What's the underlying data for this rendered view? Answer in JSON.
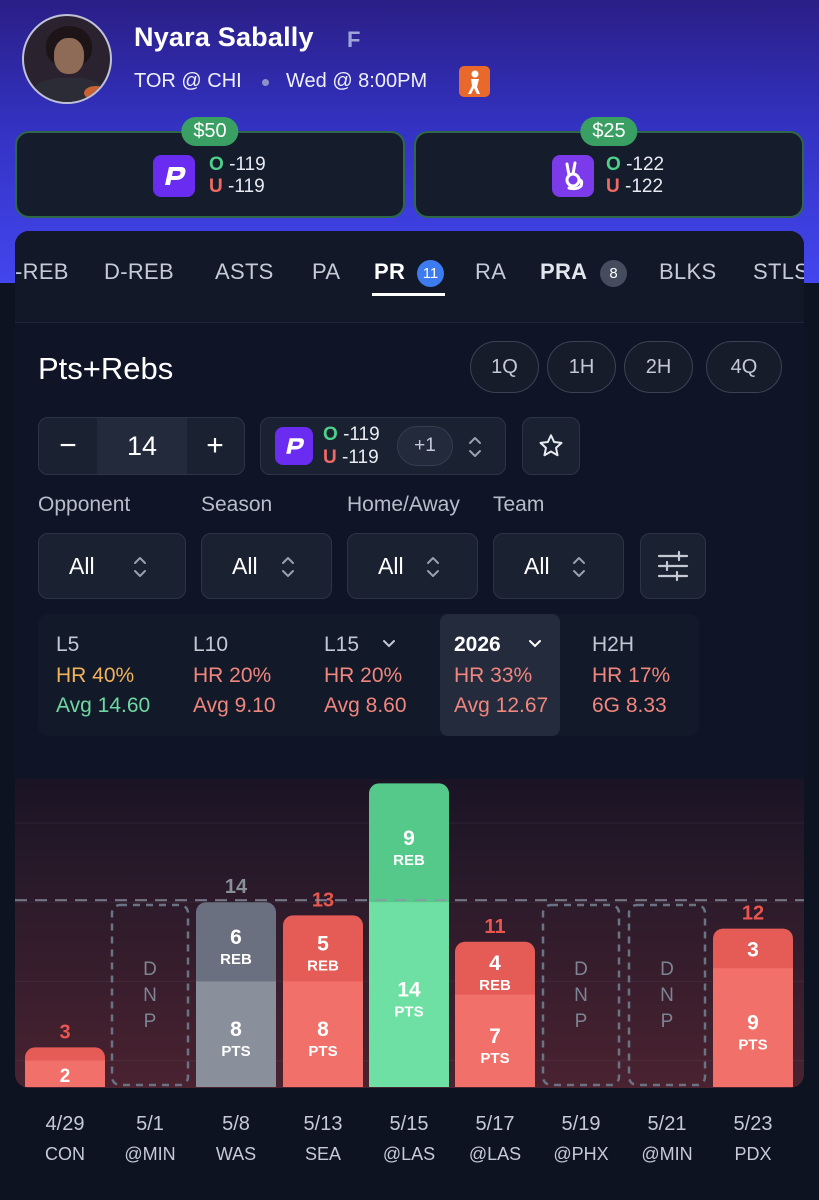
{
  "player": {
    "name": "Nyara Sabally",
    "position": "F",
    "matchup": "TOR @ CHI",
    "game_time": "Wed @ 8:00PM",
    "avatar_icon": "player-headshot",
    "league_icon": "wnba-logo-icon"
  },
  "odds_cards": [
    {
      "price": "$50",
      "book_icon": "prizepicks-logo-icon",
      "over_letter": "O",
      "over": "-119",
      "under_letter": "U",
      "under": "-119",
      "color": "#6a2cf0"
    },
    {
      "price": "$25",
      "book_icon": "underdog-logo-icon",
      "over_letter": "O",
      "over": "-122",
      "under_letter": "U",
      "under": "-122",
      "color": "#7b3bea"
    }
  ],
  "tabs": [
    {
      "label": "-REB"
    },
    {
      "label": "D-REB"
    },
    {
      "label": "ASTS"
    },
    {
      "label": "PA"
    },
    {
      "label": "PR",
      "badge": "11",
      "active": true
    },
    {
      "label": "RA"
    },
    {
      "label": "PRA",
      "badge": "8"
    },
    {
      "label": "BLKS"
    },
    {
      "label": "STLS"
    }
  ],
  "section_title": "Pts+Rebs",
  "periods": [
    "1Q",
    "1H",
    "2H",
    "4Q"
  ],
  "line": {
    "minus": "−",
    "value": "14",
    "plus": "+",
    "over_letter": "O",
    "over": "-119",
    "under_letter": "U",
    "under": "-119",
    "alt": "+1"
  },
  "filters": [
    {
      "label": "Opponent",
      "value": "All"
    },
    {
      "label": "Season",
      "value": "All"
    },
    {
      "label": "Home/Away",
      "value": "All"
    },
    {
      "label": "Team",
      "value": "All"
    }
  ],
  "stats": [
    {
      "head": "L5",
      "hr": "HR 40%",
      "avg": "Avg 14.60",
      "hr_color": "#f0b35a",
      "avg_color": "#6fd7a0"
    },
    {
      "head": "L10",
      "hr": "HR 20%",
      "avg": "Avg 9.10",
      "hr_color": "#f0867d",
      "avg_color": "#f0867d"
    },
    {
      "head": "L15",
      "hr": "HR 20%",
      "avg": "Avg 8.60",
      "hr_color": "#f0867d",
      "avg_color": "#f0867d",
      "caret": true
    },
    {
      "head": "2026",
      "hr": "HR 33%",
      "avg": "Avg 12.67",
      "hr_color": "#f0867d",
      "avg_color": "#f0867d",
      "caret": true,
      "selected": true
    },
    {
      "head": "H2H",
      "hr": "HR 17%",
      "avg": "6G 8.33",
      "hr_color": "#f0867d",
      "avg_color": "#f0867d"
    }
  ],
  "chart_data": {
    "type": "bar",
    "line": 14,
    "ylim": [
      0,
      24
    ],
    "categories": [
      "4/29",
      "5/1",
      "5/8",
      "5/13",
      "5/15",
      "5/17",
      "5/19",
      "5/21",
      "5/23"
    ],
    "opponents": [
      "CON",
      "@MIN",
      "WAS",
      "SEA",
      "@LAS",
      "@LAS",
      "@PHX",
      "@MIN",
      "PDX"
    ],
    "games": [
      {
        "total": 3,
        "pts": 2,
        "reb": 1,
        "pts_label": "",
        "reb_label": "",
        "status": "under"
      },
      {
        "dnp": true,
        "dnp_text": "DNP"
      },
      {
        "total": 14,
        "pts": 8,
        "reb": 6,
        "pts_label": "PTS",
        "reb_label": "REB",
        "status": "push"
      },
      {
        "total": 13,
        "pts": 8,
        "reb": 5,
        "pts_label": "PTS",
        "reb_label": "REB",
        "status": "under"
      },
      {
        "total": 23,
        "pts": 14,
        "reb": 9,
        "pts_label": "PTS",
        "reb_label": "REB",
        "status": "over"
      },
      {
        "total": 11,
        "pts": 7,
        "reb": 4,
        "pts_label": "PTS",
        "reb_label": "REB",
        "status": "under"
      },
      {
        "dnp": true,
        "dnp_text": "DNP"
      },
      {
        "dnp": true,
        "dnp_text": "DNP"
      },
      {
        "total": 12,
        "pts": 9,
        "reb": 3,
        "pts_label": "PTS",
        "reb_label": "",
        "status": "under"
      }
    ],
    "colors": {
      "over": "#55c98a",
      "under": "#e55b55",
      "push": "#6b7080",
      "dnp": "#6a7384"
    }
  }
}
